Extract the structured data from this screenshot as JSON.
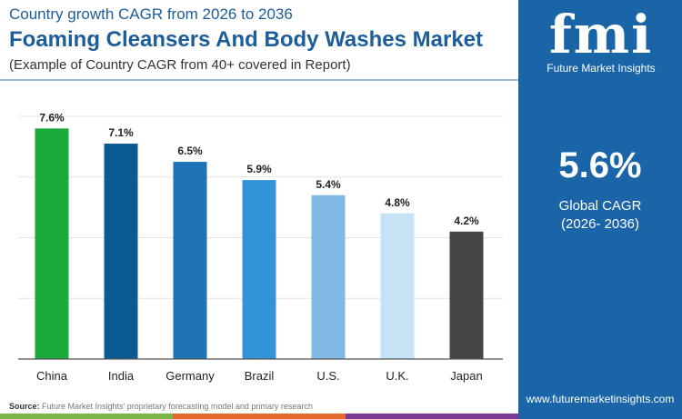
{
  "header": {
    "subtitle": "Country growth CAGR from 2026 to 2036",
    "title": "Foaming Cleansers And Body Washes Market",
    "note": "(Example of Country CAGR from 40+ covered in Report)"
  },
  "panel": {
    "logo_text": "fmi",
    "logo_name": "Future Market Insights",
    "value": "5.6%",
    "label1": "Global CAGR",
    "label2": "(2026- 2036)",
    "website": "www.futuremarketinsights.com",
    "bg_color": "#1a65a8"
  },
  "source": {
    "label": "Source:",
    "text": "Future Market Insights' proprietary forecasting model and primary research"
  },
  "chart_data": {
    "type": "bar",
    "categories": [
      "China",
      "India",
      "Germany",
      "Brazil",
      "U.S.",
      "U.K.",
      "Japan"
    ],
    "values": [
      7.6,
      7.1,
      6.5,
      5.9,
      5.4,
      4.8,
      4.2
    ],
    "labels": [
      "7.6%",
      "7.1%",
      "6.5%",
      "5.9%",
      "5.4%",
      "4.8%",
      "4.2%"
    ],
    "colors": [
      "#1aaa3c",
      "#0b5a92",
      "#1e74b6",
      "#3393d8",
      "#80b9e4",
      "#c6e2f5",
      "#444444"
    ],
    "ylim": [
      0,
      8
    ],
    "grid": true
  }
}
